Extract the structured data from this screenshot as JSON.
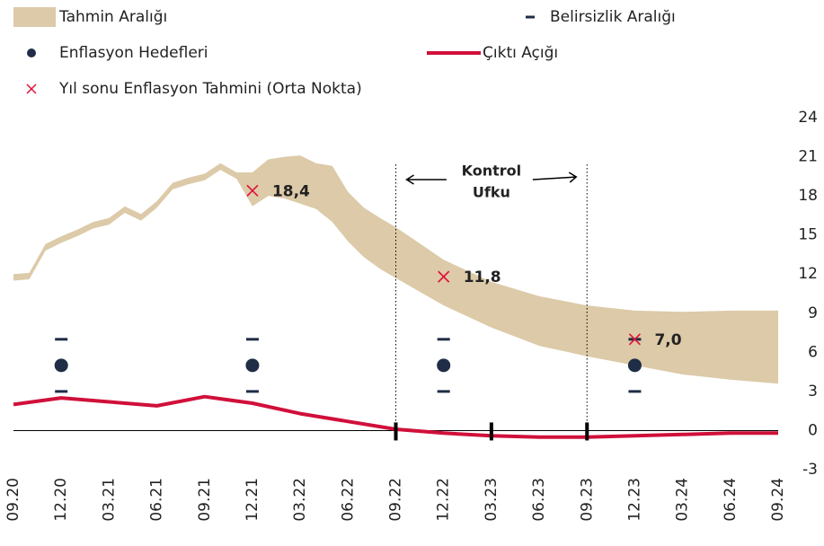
{
  "chart_data": {
    "type": "line",
    "xlim": [
      0,
      16
    ],
    "xticks": [
      {
        "value": 0,
        "label": "09.20"
      },
      {
        "value": 1,
        "label": "12.20"
      },
      {
        "value": 2,
        "label": "03.21"
      },
      {
        "value": 3,
        "label": "06.21"
      },
      {
        "value": 4,
        "label": "09.21"
      },
      {
        "value": 5,
        "label": "12.21"
      },
      {
        "value": 6,
        "label": "03.22"
      },
      {
        "value": 7,
        "label": "06.22"
      },
      {
        "value": 8,
        "label": "09.22"
      },
      {
        "value": 9,
        "label": "12.22"
      },
      {
        "value": 10,
        "label": "03.23"
      },
      {
        "value": 11,
        "label": "06.23"
      },
      {
        "value": 12,
        "label": "09.23"
      },
      {
        "value": 13,
        "label": "12.23"
      },
      {
        "value": 14,
        "label": "03.24"
      },
      {
        "value": 15,
        "label": "06.24"
      },
      {
        "value": 16,
        "label": "09.24"
      }
    ],
    "ylim": [
      -3,
      24
    ],
    "yticks": [
      -3,
      0,
      3,
      6,
      9,
      12,
      15,
      18,
      21,
      24
    ],
    "series": [
      {
        "name": "Tahmin Aralığı",
        "kind": "band",
        "color": "#dccaa8",
        "x": [
          0,
          0.33,
          0.67,
          1,
          1.33,
          1.67,
          2,
          2.33,
          2.67,
          3,
          3.33,
          3.67,
          4,
          4.33,
          4.67,
          5,
          5.33,
          5.67,
          6,
          6.33,
          6.67,
          7,
          7.33,
          7.67,
          8,
          9,
          10,
          11,
          12,
          13,
          14,
          15,
          16
        ],
        "upper": [
          12.0,
          12.1,
          14.3,
          14.9,
          15.4,
          16.0,
          16.3,
          17.2,
          16.6,
          17.6,
          19.0,
          19.4,
          19.7,
          20.5,
          19.8,
          19.8,
          20.8,
          21.0,
          21.1,
          20.5,
          20.3,
          18.3,
          17.1,
          16.3,
          15.6,
          13.1,
          11.4,
          10.3,
          9.6,
          9.2,
          9.1,
          9.2,
          9.2
        ],
        "lower": [
          11.5,
          11.6,
          13.8,
          14.4,
          14.9,
          15.5,
          15.8,
          16.7,
          16.1,
          17.1,
          18.5,
          18.9,
          19.2,
          20.0,
          19.3,
          17.2,
          18.0,
          17.8,
          17.4,
          17.0,
          16.0,
          14.5,
          13.3,
          12.4,
          11.7,
          9.6,
          7.9,
          6.5,
          5.7,
          5.0,
          4.3,
          3.9,
          3.6
        ]
      },
      {
        "name": "Belirsizlik Aralığı",
        "kind": "range",
        "color": "#1f2d46",
        "x": [
          1,
          5,
          9,
          13
        ],
        "low": [
          3,
          3,
          3,
          3
        ],
        "high": [
          7,
          7,
          7,
          7
        ]
      },
      {
        "name": "Enflasyon Hedefleri",
        "kind": "dot",
        "color": "#1f2d46",
        "x": [
          1,
          5,
          9,
          13
        ],
        "values": [
          5,
          5,
          5,
          5
        ]
      },
      {
        "name": "Çıktı Açığı",
        "kind": "line",
        "color": "#d0103a",
        "x": [
          0,
          1,
          2,
          3,
          4,
          5,
          6,
          7,
          8,
          9,
          10,
          11,
          12,
          13,
          14,
          15,
          16
        ],
        "values": [
          2.0,
          2.5,
          2.2,
          1.9,
          2.6,
          2.1,
          1.3,
          0.7,
          0.1,
          -0.2,
          -0.4,
          -0.5,
          -0.5,
          -0.4,
          -0.3,
          -0.2,
          -0.2
        ]
      },
      {
        "name": "Yıl sonu Enflasyon Tahmini (Orta Nokta)",
        "kind": "cross",
        "color": "#e0103a",
        "x": [
          5,
          9,
          13
        ],
        "values": [
          18.4,
          11.8,
          7.0
        ],
        "value_labels": [
          "18,4",
          "11,8",
          "7,0"
        ]
      }
    ],
    "control_horizon": {
      "lines": [
        "Kontrol",
        "Ufku"
      ],
      "x": [
        8,
        12
      ]
    },
    "zero_markers": [
      8,
      10,
      12
    ]
  }
}
